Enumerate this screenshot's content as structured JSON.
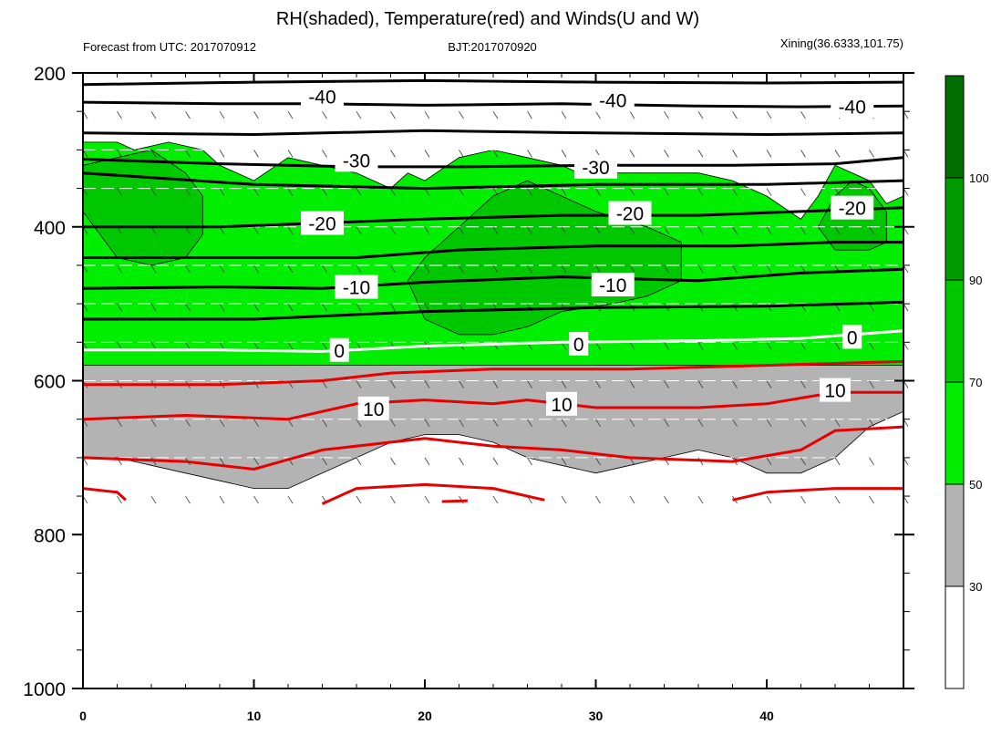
{
  "chart_data": {
    "type": "heatmap",
    "title": "RH(shaded), Temperature(red) and Winds(U and W)",
    "subtitle_left": "Forecast from UTC: 2017070912",
    "subtitle_center": "BJT:2017070920",
    "subtitle_right": "Xining(36.6333,101.75)",
    "x_ticks": [
      0,
      10,
      20,
      30,
      40
    ],
    "y_ticks": [
      200,
      400,
      600,
      800,
      1000
    ],
    "xlim": [
      0,
      48
    ],
    "ylim": [
      200,
      1000
    ],
    "colorbar": {
      "levels": [
        "30",
        "50",
        "70",
        "90",
        "100"
      ],
      "colors": [
        "#ffffff",
        "#b3b3b3",
        "#00ee00",
        "#00c800",
        "#009b00",
        "#006e00"
      ]
    },
    "rh_regions": [
      {
        "rh": "50-70",
        "points": [
          [
            0,
            290
          ],
          [
            2,
            290
          ],
          [
            3,
            300
          ],
          [
            5,
            290
          ],
          [
            7,
            300
          ],
          [
            8,
            320
          ],
          [
            10,
            340
          ],
          [
            12,
            310
          ],
          [
            14,
            320
          ],
          [
            16,
            330
          ],
          [
            18,
            350
          ],
          [
            19,
            330
          ],
          [
            20,
            340
          ],
          [
            22,
            310
          ],
          [
            24,
            300
          ],
          [
            26,
            310
          ],
          [
            28,
            320
          ],
          [
            29,
            330
          ],
          [
            32,
            330
          ],
          [
            34,
            330
          ],
          [
            36,
            330
          ],
          [
            38,
            340
          ],
          [
            40,
            360
          ],
          [
            42,
            390
          ],
          [
            43,
            360
          ],
          [
            44,
            320
          ],
          [
            46,
            340
          ],
          [
            47,
            370
          ],
          [
            48,
            360
          ],
          [
            48,
            590
          ],
          [
            47,
            590
          ],
          [
            46,
            600
          ],
          [
            44,
            600
          ],
          [
            42,
            610
          ],
          [
            40,
            610
          ],
          [
            38,
            610
          ],
          [
            36,
            600
          ],
          [
            34,
            590
          ],
          [
            32,
            580
          ],
          [
            30,
            580
          ],
          [
            28,
            590
          ],
          [
            26,
            590
          ],
          [
            24,
            610
          ],
          [
            22,
            600
          ],
          [
            20,
            600
          ],
          [
            18,
            600
          ],
          [
            16,
            600
          ],
          [
            14,
            600
          ],
          [
            12,
            610
          ],
          [
            10,
            610
          ],
          [
            8,
            610
          ],
          [
            6,
            600
          ],
          [
            4,
            600
          ],
          [
            2,
            590
          ],
          [
            0,
            580
          ]
        ]
      },
      {
        "rh": "30-50",
        "points": [
          [
            0,
            580
          ],
          [
            48,
            580
          ],
          [
            48,
            640
          ],
          [
            46,
            660
          ],
          [
            44,
            700
          ],
          [
            42,
            720
          ],
          [
            40,
            720
          ],
          [
            38,
            700
          ],
          [
            36,
            690
          ],
          [
            34,
            700
          ],
          [
            32,
            710
          ],
          [
            30,
            720
          ],
          [
            28,
            710
          ],
          [
            26,
            700
          ],
          [
            24,
            680
          ],
          [
            22,
            670
          ],
          [
            20,
            670
          ],
          [
            18,
            680
          ],
          [
            16,
            700
          ],
          [
            14,
            720
          ],
          [
            12,
            740
          ],
          [
            10,
            740
          ],
          [
            8,
            730
          ],
          [
            6,
            720
          ],
          [
            4,
            710
          ],
          [
            2,
            700
          ],
          [
            0,
            700
          ]
        ]
      },
      {
        "rh": "70-90",
        "points": [
          [
            0,
            320
          ],
          [
            2,
            310
          ],
          [
            4,
            300
          ],
          [
            6,
            330
          ],
          [
            7,
            360
          ],
          [
            7,
            410
          ],
          [
            6,
            440
          ],
          [
            4,
            450
          ],
          [
            2,
            440
          ],
          [
            1,
            410
          ],
          [
            0,
            380
          ]
        ]
      },
      {
        "rh": "70-90",
        "points": [
          [
            19,
            470
          ],
          [
            20,
            440
          ],
          [
            22,
            400
          ],
          [
            24,
            360
          ],
          [
            26,
            340
          ],
          [
            28,
            360
          ],
          [
            30,
            380
          ],
          [
            33,
            400
          ],
          [
            35,
            420
          ],
          [
            35,
            470
          ],
          [
            33,
            490
          ],
          [
            31,
            500
          ],
          [
            28,
            510
          ],
          [
            26,
            530
          ],
          [
            24,
            540
          ],
          [
            22,
            540
          ],
          [
            20,
            520
          ]
        ]
      },
      {
        "rh": "70-90",
        "points": [
          [
            44,
            360
          ],
          [
            45,
            340
          ],
          [
            46,
            350
          ],
          [
            47,
            380
          ],
          [
            47,
            420
          ],
          [
            46,
            430
          ],
          [
            44,
            430
          ],
          [
            43,
            400
          ]
        ]
      }
    ],
    "temperature_labels": [
      "-40",
      "-40",
      "-40",
      "-30",
      "-30",
      "-20",
      "-20",
      "-20",
      "-10",
      "-10",
      "0",
      "0",
      "0",
      "10",
      "10",
      "10"
    ],
    "temperature_contours": [
      {
        "level": -45,
        "color": "black",
        "points": [
          [
            0,
            215
          ],
          [
            10,
            212
          ],
          [
            20,
            210
          ],
          [
            30,
            212
          ],
          [
            40,
            213
          ],
          [
            48,
            212
          ]
        ]
      },
      {
        "level": -40,
        "color": "black",
        "points": [
          [
            0,
            238
          ],
          [
            8,
            240
          ],
          [
            14,
            240
          ],
          [
            20,
            242
          ],
          [
            28,
            240
          ],
          [
            36,
            243
          ],
          [
            42,
            244
          ],
          [
            48,
            243
          ]
        ]
      },
      {
        "level": -35,
        "color": "black",
        "points": [
          [
            0,
            278
          ],
          [
            10,
            280
          ],
          [
            20,
            275
          ],
          [
            30,
            278
          ],
          [
            40,
            280
          ],
          [
            48,
            278
          ]
        ]
      },
      {
        "level": -30,
        "color": "black",
        "points": [
          [
            0,
            312
          ],
          [
            8,
            318
          ],
          [
            16,
            322
          ],
          [
            22,
            322
          ],
          [
            30,
            320
          ],
          [
            38,
            320
          ],
          [
            44,
            318
          ],
          [
            48,
            310
          ]
        ]
      },
      {
        "level": -25,
        "color": "black",
        "points": [
          [
            0,
            330
          ],
          [
            10,
            345
          ],
          [
            20,
            350
          ],
          [
            30,
            345
          ],
          [
            40,
            345
          ],
          [
            48,
            340
          ]
        ]
      },
      {
        "level": -20,
        "color": "black",
        "points": [
          [
            0,
            400
          ],
          [
            8,
            400
          ],
          [
            14,
            395
          ],
          [
            20,
            390
          ],
          [
            28,
            385
          ],
          [
            36,
            385
          ],
          [
            42,
            380
          ],
          [
            48,
            375
          ]
        ]
      },
      {
        "level": -15,
        "color": "black",
        "points": [
          [
            0,
            440
          ],
          [
            8,
            440
          ],
          [
            16,
            440
          ],
          [
            22,
            430
          ],
          [
            30,
            425
          ],
          [
            38,
            425
          ],
          [
            44,
            420
          ],
          [
            48,
            420
          ]
        ]
      },
      {
        "level": -10,
        "color": "black",
        "points": [
          [
            0,
            480
          ],
          [
            8,
            478
          ],
          [
            14,
            480
          ],
          [
            20,
            472
          ],
          [
            28,
            465
          ],
          [
            36,
            470
          ],
          [
            42,
            460
          ],
          [
            48,
            455
          ]
        ]
      },
      {
        "level": -5,
        "color": "black",
        "points": [
          [
            0,
            520
          ],
          [
            10,
            520
          ],
          [
            20,
            510
          ],
          [
            30,
            505
          ],
          [
            40,
            503
          ],
          [
            48,
            498
          ]
        ]
      },
      {
        "level": 0,
        "color": "white",
        "points": [
          [
            0,
            560
          ],
          [
            8,
            560
          ],
          [
            14,
            562
          ],
          [
            20,
            555
          ],
          [
            28,
            550
          ],
          [
            36,
            548
          ],
          [
            42,
            545
          ],
          [
            48,
            535
          ]
        ]
      },
      {
        "level": 5,
        "color": "red",
        "points": [
          [
            0,
            605
          ],
          [
            8,
            605
          ],
          [
            14,
            600
          ],
          [
            18,
            590
          ],
          [
            24,
            585
          ],
          [
            32,
            585
          ],
          [
            40,
            580
          ],
          [
            48,
            575
          ]
        ]
      },
      {
        "level": 10,
        "color": "red",
        "points": [
          [
            0,
            650
          ],
          [
            6,
            645
          ],
          [
            12,
            650
          ],
          [
            16,
            630
          ],
          [
            20,
            625
          ],
          [
            24,
            630
          ],
          [
            26,
            625
          ],
          [
            30,
            635
          ],
          [
            36,
            635
          ],
          [
            40,
            630
          ],
          [
            44,
            615
          ],
          [
            48,
            615
          ]
        ]
      },
      {
        "level": 15,
        "color": "red",
        "points": [
          [
            0,
            700
          ],
          [
            6,
            705
          ],
          [
            10,
            715
          ],
          [
            14,
            690
          ],
          [
            20,
            675
          ],
          [
            24,
            685
          ],
          [
            28,
            690
          ],
          [
            32,
            700
          ],
          [
            38,
            705
          ],
          [
            42,
            690
          ],
          [
            44,
            665
          ],
          [
            48,
            660
          ]
        ]
      },
      {
        "level": 20,
        "color": "red",
        "points": [
          [
            0,
            740
          ],
          [
            2,
            745
          ],
          [
            2.5,
            755
          ]
        ]
      },
      {
        "level": 20,
        "color": "red",
        "points": [
          [
            14,
            760
          ],
          [
            16,
            740
          ],
          [
            20,
            735
          ],
          [
            24,
            740
          ],
          [
            27,
            755
          ]
        ]
      },
      {
        "level": 20,
        "color": "red",
        "points": [
          [
            21,
            757
          ],
          [
            22.5,
            756
          ]
        ]
      },
      {
        "level": 20,
        "color": "red",
        "points": [
          [
            38,
            755
          ],
          [
            40,
            745
          ],
          [
            44,
            740
          ],
          [
            48,
            740
          ]
        ]
      }
    ],
    "wind_rows_hPa": [
      250,
      300,
      350,
      400,
      450,
      500,
      550,
      600,
      650,
      700,
      750
    ]
  }
}
